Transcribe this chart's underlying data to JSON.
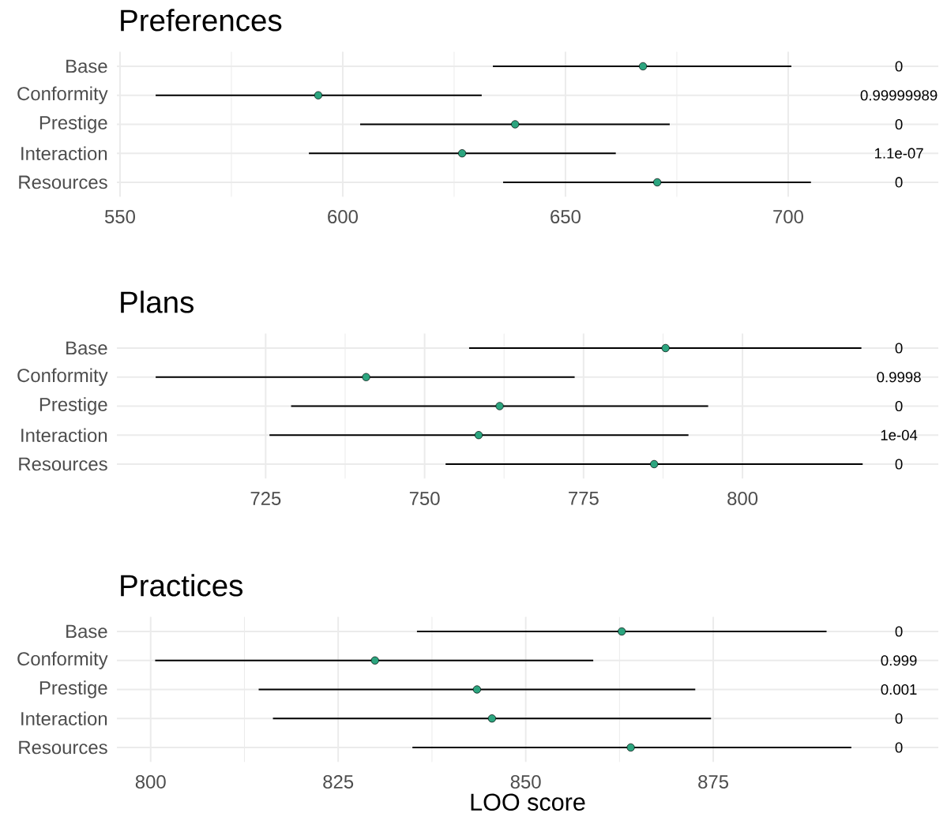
{
  "chart_data": [
    {
      "type": "scatter",
      "orientation": "horizontal",
      "title": "Preferences",
      "categories": [
        "Base",
        "Conformity",
        "Prestige",
        "Interaction",
        "Resources"
      ],
      "color": "#2ca57f",
      "marker": "circle",
      "grid": true,
      "values": [
        667.4,
        594.5,
        638.7,
        626.8,
        670.6
      ],
      "errors": [
        [
          633.7,
          700.7
        ],
        [
          558.0,
          631.2
        ],
        [
          603.9,
          673.4
        ],
        [
          592.4,
          661.3
        ],
        [
          636.0,
          705.1
        ]
      ],
      "xlim": [
        549.3,
        733.7
      ],
      "xticks": [
        550,
        600,
        650,
        700
      ],
      "annotations": [
        "0",
        "0.99999989",
        "0",
        "1.1e-07",
        "0"
      ]
    },
    {
      "type": "scatter",
      "orientation": "horizontal",
      "title": "Plans",
      "categories": [
        "Base",
        "Conformity",
        "Prestige",
        "Interaction",
        "Resources"
      ],
      "color": "#2ca57f",
      "marker": "circle",
      "grid": true,
      "values": [
        787.9,
        740.8,
        761.8,
        758.5,
        786.1
      ],
      "errors": [
        [
          757.0,
          818.7
        ],
        [
          707.7,
          773.6
        ],
        [
          729.0,
          794.6
        ],
        [
          725.6,
          791.5
        ],
        [
          753.3,
          818.9
        ]
      ],
      "xlim": [
        701.6,
        830.8
      ],
      "xticks": [
        725,
        750,
        775,
        800
      ],
      "annotations": [
        "0",
        "0.9998",
        "0",
        "1e-04",
        "0"
      ]
    },
    {
      "type": "scatter",
      "orientation": "horizontal",
      "title": "Practices",
      "xlabel": "LOO score",
      "categories": [
        "Base",
        "Conformity",
        "Prestige",
        "Interaction",
        "Resources"
      ],
      "color": "#2ca57f",
      "marker": "circle",
      "grid": true,
      "values": [
        862.8,
        829.9,
        843.5,
        845.5,
        864.0
      ],
      "errors": [
        [
          835.5,
          890.1
        ],
        [
          800.6,
          859.0
        ],
        [
          814.4,
          872.6
        ],
        [
          816.3,
          874.7
        ],
        [
          834.9,
          893.4
        ]
      ],
      "xlim": [
        795.5,
        905.0
      ],
      "xticks": [
        800,
        825,
        850,
        875
      ],
      "annotations": [
        "0",
        "0.999",
        "0.001",
        "0",
        "0"
      ]
    }
  ]
}
